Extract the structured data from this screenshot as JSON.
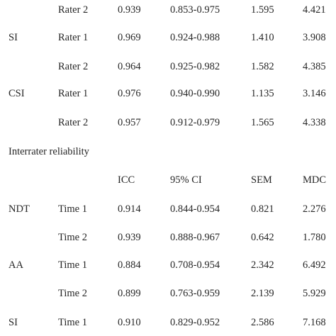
{
  "rows": [
    {
      "measure": "",
      "sub": "Rater 2",
      "icc": "0.939",
      "ci": "0.853-0.975",
      "sem": "1.595",
      "mdc": "4.421"
    },
    {
      "measure": "SI",
      "sub": "Rater 1",
      "icc": "0.969",
      "ci": "0.924-0.988",
      "sem": "1.410",
      "mdc": "3.908"
    },
    {
      "measure": "",
      "sub": "Rater 2",
      "icc": "0.964",
      "ci": "0.925-0.982",
      "sem": "1.582",
      "mdc": "4.385"
    },
    {
      "measure": "CSI",
      "sub": "Rater 1",
      "icc": "0.976",
      "ci": "0.940-0.990",
      "sem": "1.135",
      "mdc": "3.146"
    },
    {
      "measure": "",
      "sub": "Rater 2",
      "icc": "0.957",
      "ci": "0.912-0.979",
      "sem": "1.565",
      "mdc": "4.338"
    }
  ],
  "section_title": "Interrater reliability",
  "headers": {
    "icc": "ICC",
    "ci": "95% CI",
    "sem": "SEM",
    "mdc": "MDC"
  },
  "rows2": [
    {
      "measure": "NDT",
      "sub": "Time 1",
      "icc": "0.914",
      "ci": "0.844-0.954",
      "sem": "0.821",
      "mdc": "2.276"
    },
    {
      "measure": "",
      "sub": "Time 2",
      "icc": "0.939",
      "ci": "0.888-0.967",
      "sem": "0.642",
      "mdc": "1.780"
    },
    {
      "measure": "AA",
      "sub": "Time 1",
      "icc": "0.884",
      "ci": "0.708-0.954",
      "sem": "2.342",
      "mdc": "6.492"
    },
    {
      "measure": "",
      "sub": "Time 2",
      "icc": "0.899",
      "ci": "0.763-0.959",
      "sem": "2.139",
      "mdc": "5.929"
    },
    {
      "measure": "SI",
      "sub": "Time 1",
      "icc": "0.910",
      "ci": "0.829-0.952",
      "sem": "2.586",
      "mdc": "7.168"
    }
  ]
}
